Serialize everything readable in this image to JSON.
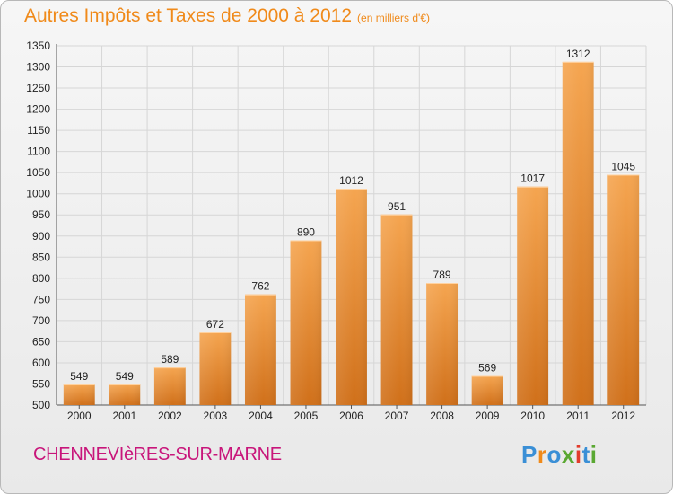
{
  "header": {
    "title": "Autres Impôts et Taxes de 2000 à 2012",
    "unit": "(en milliers d'€)"
  },
  "footer": {
    "city": "CHENNEVIèRES-SUR-MARNE",
    "logo": "Proxiti",
    "logo_colors": [
      "#3a8fd6",
      "#f08a1a",
      "#3a8fd6",
      "#5aa832",
      "#e23c2c",
      "#3a8fd6",
      "#5aa832"
    ]
  },
  "chart_data": {
    "type": "bar",
    "categories": [
      "2000",
      "2001",
      "2002",
      "2003",
      "2004",
      "2005",
      "2006",
      "2007",
      "2008",
      "2009",
      "2010",
      "2011",
      "2012"
    ],
    "values": [
      549,
      549,
      589,
      672,
      762,
      890,
      1012,
      951,
      789,
      569,
      1017,
      1312,
      1045
    ],
    "value_labels": [
      "549",
      "549",
      "589",
      "672",
      "762",
      "890",
      "1012",
      "951",
      "789",
      "569",
      "1017",
      "1312",
      "1045"
    ],
    "ylim": [
      500,
      1350
    ],
    "yticks": [
      "500",
      "550",
      "600",
      "650",
      "700",
      "750",
      "800",
      "850",
      "900",
      "950",
      "1000",
      "1050",
      "1100",
      "1150",
      "1200",
      "1250",
      "1300",
      "1350"
    ],
    "grid": true,
    "bar_color": "#f0a04a"
  }
}
